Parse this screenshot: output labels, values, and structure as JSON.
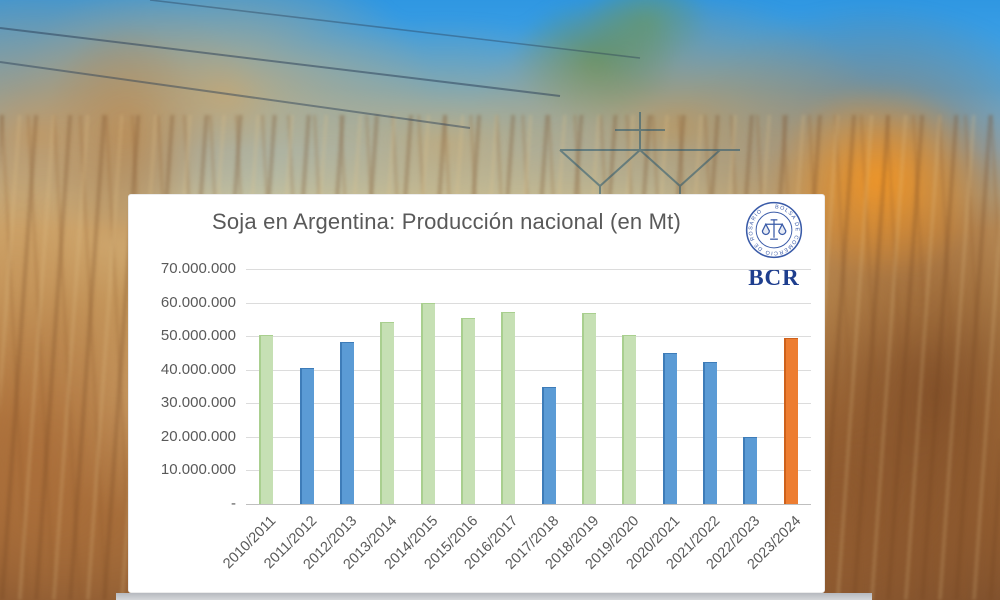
{
  "background": {
    "alt": "Campo de soja seco bajo cielo azul",
    "sky_color": "#3b9fe6",
    "field_colors": [
      "#d2a96e",
      "#b3793f",
      "#8a5a33",
      "#f29828"
    ]
  },
  "logo": {
    "abbr": "BCR",
    "seal_text": "BOLSA DE COMERCIO DE ROSARIO",
    "color": "#1e3e8e"
  },
  "chart_data": {
    "type": "bar",
    "title": "Soja en Argentina: Producción nacional (en Mt)",
    "title_color": "#595959",
    "categories": [
      "2010/2011",
      "2011/2012",
      "2012/2013",
      "2013/2014",
      "2014/2015",
      "2015/2016",
      "2016/2017",
      "2017/2018",
      "2018/2019",
      "2019/2020",
      "2020/2021",
      "2021/2022",
      "2022/2023",
      "2023/2024"
    ],
    "values": [
      50300000,
      40500000,
      48300000,
      54300000,
      60000000,
      55300000,
      57300000,
      35000000,
      56800000,
      50500000,
      45000000,
      42400000,
      20000000,
      49500000
    ],
    "bar_colors": [
      "green",
      "blue",
      "blue",
      "green",
      "green",
      "green",
      "green",
      "blue",
      "green",
      "green",
      "blue",
      "blue",
      "blue",
      "orange"
    ],
    "palette": {
      "green": {
        "fill": "#c6e0b4",
        "edge": "#a9cf8f"
      },
      "blue": {
        "fill": "#5b9bd5",
        "edge": "#3e7cb8"
      },
      "orange": {
        "fill": "#ed7d31",
        "edge": "#ce611b"
      }
    },
    "ylim": [
      0,
      70000000
    ],
    "y_tick_labels": [
      "70.000.000",
      "60.000.000",
      "50.000.000",
      "40.000.000",
      "30.000.000",
      "20.000.000",
      "10.000.000",
      "-"
    ],
    "grid": true,
    "legend": "none",
    "x_label_rotation_deg": 45
  }
}
